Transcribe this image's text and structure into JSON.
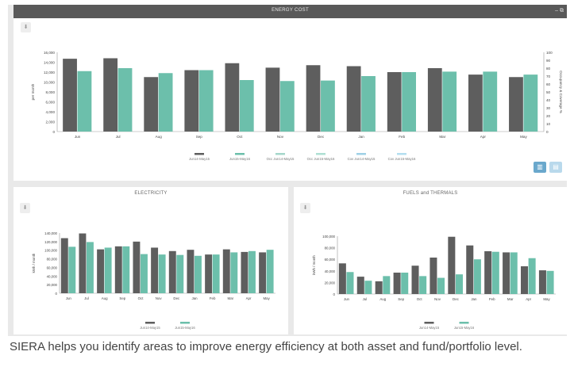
{
  "energy_cost": {
    "title": "ENERGY COST",
    "header_controls": "– ⧉"
  },
  "electricity": {
    "title": "ELECTRICITY"
  },
  "fuels": {
    "title": "FUELS and THERMALS"
  },
  "caption": "SIERA helps you identify areas to improve energy efficiency at both asset and fund/portfolio level.",
  "colors": {
    "series1": "#5e5e5e",
    "series2": "#6cbfab",
    "series3": "#a5d7cb",
    "series4": "#aee0d3",
    "series5": "#9fd1e6",
    "series6": "#b3dff0",
    "accent_btn": "#6aa8cc"
  },
  "icons": {
    "download": "download-icon",
    "bar_view": "bar-chart-icon",
    "line_view": "line-chart-icon"
  },
  "chart_data": [
    {
      "type": "bar",
      "title": "ENERGY COST",
      "categories": [
        "Jun",
        "Jul",
        "Aug",
        "Sep",
        "Oct",
        "Nov",
        "Dec",
        "Jan",
        "Feb",
        "Mar",
        "Apr",
        "May"
      ],
      "series": [
        {
          "name": "Jun14-May15",
          "values": [
            14700,
            14800,
            11000,
            12400,
            13800,
            12900,
            13400,
            13200,
            12000,
            12800,
            11500,
            11000
          ]
        },
        {
          "name": "Jun15-May16",
          "values": [
            12200,
            12800,
            11800,
            12400,
            10400,
            10200,
            10300,
            11200,
            12000,
            12100,
            12100,
            11500
          ]
        }
      ],
      "legend_extra": [
        "Occ Jun14-May15",
        "Occ Jun15-May16",
        "Cov Jun14-May15",
        "Cov Jun15-May16"
      ],
      "ylabel": "per month",
      "y2label": "Occupancy & Coverage %",
      "ylim": [
        0,
        16000
      ],
      "yticks": [
        "0",
        "2,000",
        "4,000",
        "6,000",
        "8,000",
        "10,000",
        "12,000",
        "14,000",
        "16,000"
      ],
      "y2lim": [
        0,
        100
      ],
      "y2ticks": [
        "0",
        "10",
        "20",
        "30",
        "40",
        "50",
        "60",
        "70",
        "80",
        "90",
        "100"
      ],
      "legend_position": "bottom"
    },
    {
      "type": "bar",
      "title": "ELECTRICITY",
      "categories": [
        "Jun",
        "Jul",
        "Aug",
        "Sep",
        "Oct",
        "Nov",
        "Dec",
        "Jan",
        "Feb",
        "Mar",
        "Apr",
        "May"
      ],
      "series": [
        {
          "name": "Jun14-May15",
          "values": [
            128000,
            139000,
            102000,
            109000,
            120000,
            106000,
            98000,
            101000,
            90000,
            102000,
            96000,
            95000
          ]
        },
        {
          "name": "Jun15-May16",
          "values": [
            108000,
            119000,
            106000,
            109000,
            91000,
            90000,
            89000,
            87000,
            90000,
            95000,
            98000,
            101000
          ]
        }
      ],
      "ylabel": "kWh / month",
      "ylim": [
        0,
        140000
      ],
      "yticks": [
        "0",
        "20,000",
        "40,000",
        "60,000",
        "80,000",
        "100,000",
        "120,000",
        "140,000"
      ],
      "legend_position": "bottom"
    },
    {
      "type": "bar",
      "title": "FUELS and THERMALS",
      "categories": [
        "Jun",
        "Jul",
        "Aug",
        "Sep",
        "Oct",
        "Nov",
        "Dec",
        "Jan",
        "Feb",
        "Mar",
        "Apr",
        "May"
      ],
      "series": [
        {
          "name": "Jun14-May15",
          "values": [
            53000,
            30000,
            22000,
            37000,
            49000,
            63000,
            99000,
            84000,
            74000,
            72000,
            48000,
            41000
          ]
        },
        {
          "name": "Jun15-May16",
          "values": [
            38000,
            23000,
            31000,
            37000,
            31000,
            28000,
            34000,
            60000,
            73000,
            72000,
            62000,
            40000
          ]
        }
      ],
      "ylabel": "kWh / month",
      "ylim": [
        0,
        100000
      ],
      "yticks": [
        "0",
        "20,000",
        "40,000",
        "60,000",
        "80,000",
        "100,000"
      ],
      "legend_position": "bottom"
    }
  ]
}
